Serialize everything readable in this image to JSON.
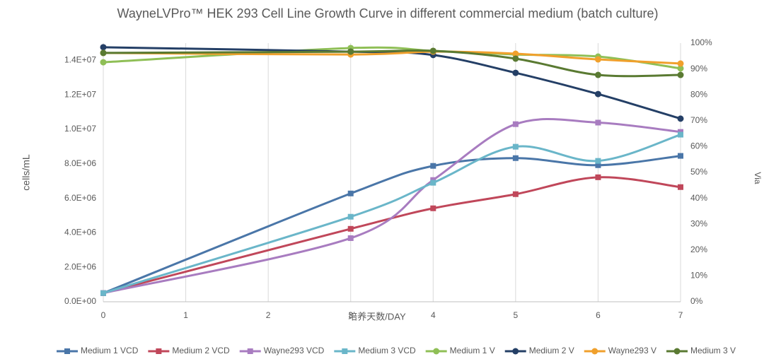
{
  "chart_data": {
    "type": "line",
    "title": "WayneLVPro™ HEK 293 Cell Line Growth Curve in different commercial medium (batch culture)",
    "xlabel": "培养天数/DAY",
    "ylabel": "cells/mL",
    "y2label": "Via",
    "x": [
      0,
      3,
      4,
      5,
      6,
      7
    ],
    "xlim": [
      0,
      7
    ],
    "xticks": [
      0,
      1,
      2,
      3,
      4,
      5,
      6,
      7
    ],
    "ylim": [
      0,
      15000000
    ],
    "yticks": [
      {
        "value": 0,
        "label": "0.0E+00"
      },
      {
        "value": 2000000,
        "label": "2.0E+06"
      },
      {
        "value": 4000000,
        "label": "4.0E+06"
      },
      {
        "value": 6000000,
        "label": "6.0E+06"
      },
      {
        "value": 8000000,
        "label": "8.0E+06"
      },
      {
        "value": 10000000,
        "label": "1.0E+07"
      },
      {
        "value": 12000000,
        "label": "1.2E+07"
      },
      {
        "value": 14000000,
        "label": "1.4E+07"
      }
    ],
    "y2lim": [
      0,
      100
    ],
    "y2ticks": [
      {
        "value": 0,
        "label": "0%"
      },
      {
        "value": 10,
        "label": "10%"
      },
      {
        "value": 20,
        "label": "20%"
      },
      {
        "value": 30,
        "label": "30%"
      },
      {
        "value": 40,
        "label": "40%"
      },
      {
        "value": 50,
        "label": "50%"
      },
      {
        "value": 60,
        "label": "60%"
      },
      {
        "value": 70,
        "label": "70%"
      },
      {
        "value": 80,
        "label": "80%"
      },
      {
        "value": 90,
        "label": "90%"
      },
      {
        "value": 100,
        "label": "100%"
      }
    ],
    "xgrid": true,
    "smooth": true,
    "legend": "bottom",
    "series": [
      {
        "name": "Medium 1 VCD",
        "color": "#4a76a8",
        "marker": "square",
        "values": [
          500000,
          6280000,
          7880000,
          8330000,
          7920000,
          8460000
        ]
      },
      {
        "name": "Medium 2 VCD",
        "color": "#c0475a",
        "marker": "square",
        "values": [
          500000,
          4230000,
          5420000,
          6240000,
          7220000,
          6650000
        ]
      },
      {
        "name": "Wayne293 VCD",
        "color": "#a87cc0",
        "marker": "square",
        "values": [
          500000,
          3690000,
          7060000,
          10300000,
          10390000,
          9850000
        ]
      },
      {
        "name": "Medium 3 VCD",
        "color": "#6ab6c9",
        "marker": "square",
        "values": [
          500000,
          4930000,
          6900000,
          8990000,
          8170000,
          9690000
        ]
      },
      {
        "name": "Medium 1 V",
        "color": "#8fbf56",
        "marker": "circle",
        "axis": "y2",
        "values": [
          92.6,
          98.1,
          97.0,
          95.6,
          94.8,
          90.2
        ]
      },
      {
        "name": "Medium 2 V",
        "color": "#243f66",
        "marker": "circle",
        "axis": "y2",
        "values": [
          98.4,
          96.7,
          95.4,
          88.5,
          80.3,
          70.8
        ]
      },
      {
        "name": "Wayne293 V",
        "color": "#f0a02c",
        "marker": "circle",
        "axis": "y2",
        "values": [
          96.2,
          95.6,
          96.7,
          95.9,
          93.7,
          92.1
        ]
      },
      {
        "name": "Medium 3 V",
        "color": "#5a7a32",
        "marker": "circle",
        "axis": "y2",
        "values": [
          96.2,
          96.7,
          97.0,
          94.0,
          87.7,
          87.7
        ]
      }
    ]
  }
}
